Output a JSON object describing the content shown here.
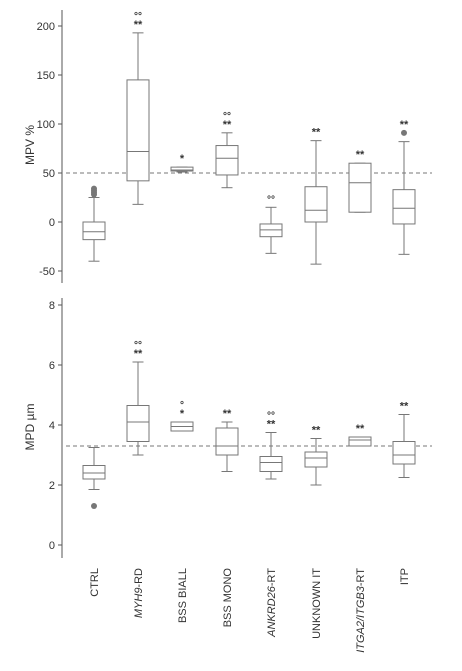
{
  "chart_data": [
    {
      "type": "box",
      "ylabel": "MPV %",
      "ylim": [
        -55,
        210
      ],
      "yticks": [
        -50,
        0,
        50,
        100,
        150,
        200
      ],
      "reference_line": 50,
      "grid": false,
      "categories": [
        "CTRL",
        "MYH9-RD",
        "BSS BIALL",
        "BSS MONO",
        "ANKRD26-RT",
        "UNKNOWN IT",
        "ITGA2/ITGB3-RT",
        "ITP"
      ],
      "boxes": [
        {
          "min": -40,
          "q1": -18,
          "median": -10,
          "q3": 0,
          "max": 25,
          "outliers": [
            28,
            30,
            32,
            34
          ],
          "annotation": ""
        },
        {
          "min": 18,
          "q1": 42,
          "median": 72,
          "q3": 145,
          "max": 193,
          "outliers": [],
          "annotation": "°°\n**"
        },
        {
          "min": 51,
          "q1": 52,
          "median": 53,
          "q3": 56,
          "max": 56,
          "outliers": [],
          "annotation": "*"
        },
        {
          "min": 35,
          "q1": 48,
          "median": 65,
          "q3": 78,
          "max": 91,
          "outliers": [],
          "annotation": "°°\n**"
        },
        {
          "min": -32,
          "q1": -15,
          "median": -8,
          "q3": -2,
          "max": 15,
          "outliers": [],
          "annotation": "°°"
        },
        {
          "min": -43,
          "q1": 0,
          "median": 12,
          "q3": 36,
          "max": 83,
          "outliers": [],
          "annotation": "**"
        },
        {
          "min": 10,
          "q1": 10,
          "median": 40,
          "q3": 60,
          "max": 60,
          "outliers": [],
          "annotation": "**"
        },
        {
          "min": -33,
          "q1": -2,
          "median": 14,
          "q3": 33,
          "max": 82,
          "outliers": [
            91
          ],
          "annotation": "**"
        }
      ]
    },
    {
      "type": "box",
      "ylabel": "MPD µm",
      "ylim": [
        -0.2,
        8.3
      ],
      "yticks": [
        0,
        2,
        4,
        6,
        8
      ],
      "reference_line": 3.3,
      "grid": false,
      "categories": [
        "CTRL",
        "MYH9-RD",
        "BSS BIALL",
        "BSS MONO",
        "ANKRD26-RT",
        "UNKNOWN IT",
        "ITGA2/ITGB3-RT",
        "ITP"
      ],
      "boxes": [
        {
          "min": 1.85,
          "q1": 2.2,
          "median": 2.4,
          "q3": 2.65,
          "max": 3.25,
          "outliers": [
            1.3
          ],
          "annotation": ""
        },
        {
          "min": 3.0,
          "q1": 3.45,
          "median": 4.1,
          "q3": 4.65,
          "max": 6.1,
          "outliers": [],
          "annotation": "°°\n**"
        },
        {
          "min": 3.8,
          "q1": 3.8,
          "median": 3.95,
          "q3": 4.1,
          "max": 4.1,
          "outliers": [],
          "annotation": "°\n*"
        },
        {
          "min": 2.45,
          "q1": 3.0,
          "median": 3.3,
          "q3": 3.9,
          "max": 4.1,
          "outliers": [],
          "annotation": "**"
        },
        {
          "min": 2.2,
          "q1": 2.45,
          "median": 2.75,
          "q3": 2.95,
          "max": 3.75,
          "outliers": [],
          "annotation": "°°\n**"
        },
        {
          "min": 2.0,
          "q1": 2.6,
          "median": 2.9,
          "q3": 3.1,
          "max": 3.55,
          "outliers": [],
          "annotation": "**"
        },
        {
          "min": 3.3,
          "q1": 3.3,
          "median": 3.5,
          "q3": 3.6,
          "max": 3.6,
          "outliers": [],
          "annotation": "**"
        },
        {
          "min": 2.25,
          "q1": 2.7,
          "median": 3.0,
          "q3": 3.45,
          "max": 4.35,
          "outliers": [],
          "annotation": "**"
        }
      ]
    }
  ],
  "category_labels": [
    {
      "text": "CTRL",
      "italic": ""
    },
    {
      "text": "-RD",
      "italic": "MYH9"
    },
    {
      "text": "BSS BIALL",
      "italic": ""
    },
    {
      "text": "BSS MONO",
      "italic": ""
    },
    {
      "text": "-RT",
      "italic": "ANKRD26"
    },
    {
      "text": "UNKNOWN IT",
      "italic": ""
    },
    {
      "text": "-RT",
      "italic": "ITGA2/ITGB3"
    },
    {
      "text": "ITP",
      "italic": ""
    }
  ],
  "colors": {
    "axis": "#555555",
    "box": "#777777",
    "outlier": "#777777",
    "reference": "#777777"
  }
}
